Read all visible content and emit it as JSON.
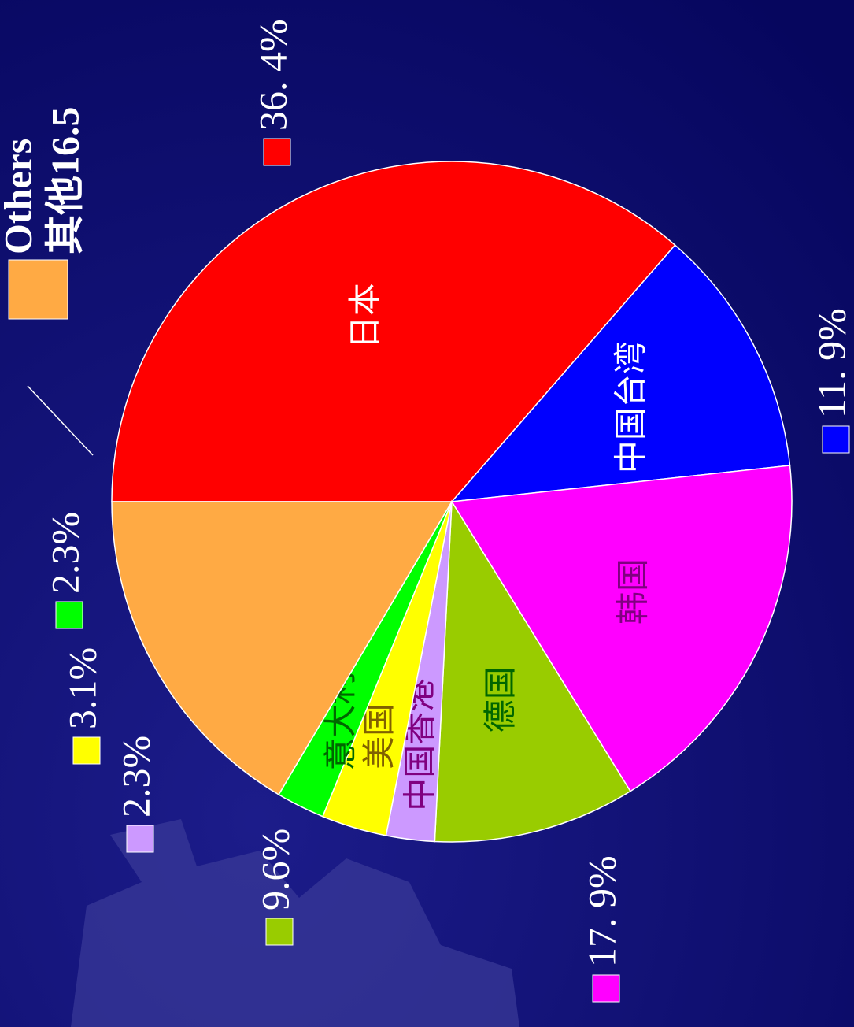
{
  "chart_data": {
    "type": "pie",
    "categories": [
      "日本",
      "中国台湾",
      "韩国",
      "德国",
      "中国香港",
      "美国",
      "意大利",
      "Others"
    ],
    "values": [
      36.4,
      11.9,
      17.9,
      9.6,
      2.3,
      3.1,
      2.3,
      16.5
    ],
    "value_labels": [
      "36. 4%",
      "11. 9%",
      "17. 9%",
      "9.6%",
      "2.3%",
      "3.1%",
      "2.3%",
      "其他16.5"
    ],
    "colors": [
      "#ff0000",
      "#0000ff",
      "#ff00ff",
      "#99cc00",
      "#cc99ff",
      "#ffff00",
      "#00ff00",
      "#ffaa44"
    ],
    "label_colors": [
      "#ffffff",
      "#ffffff",
      "#800080",
      "#006600",
      "#800080",
      "#806000",
      "#006600",
      "#ffffff"
    ]
  }
}
